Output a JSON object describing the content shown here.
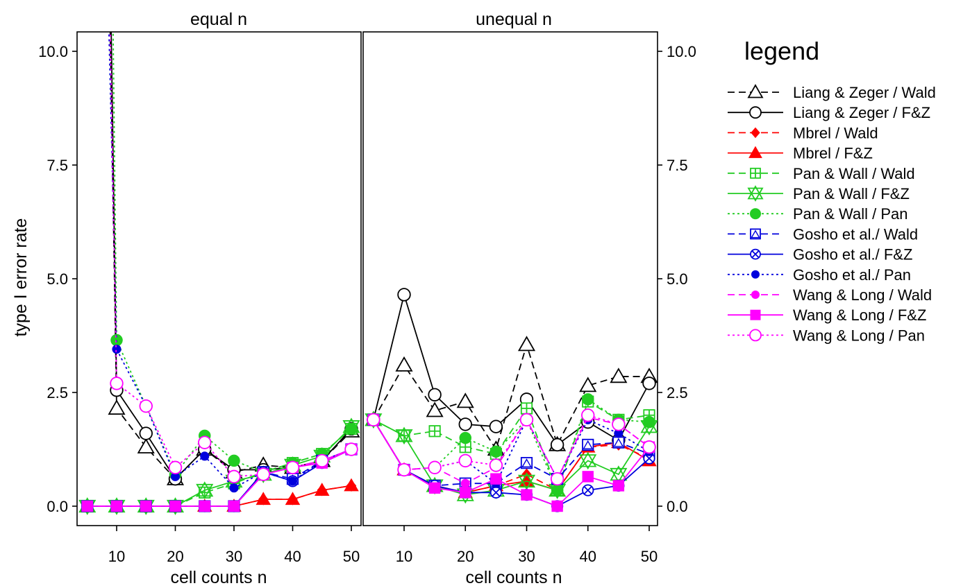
{
  "chart_data": {
    "type": "line",
    "ylabel": "type I error rate",
    "ylim": [
      -0.4,
      10.4
    ],
    "yticks": [
      "0.0",
      "2.5",
      "5.0",
      "7.5",
      "10.0"
    ],
    "yticks_values": [
      0,
      2.5,
      5,
      7.5,
      10
    ],
    "legend": {
      "title": "legend",
      "placement": "right"
    },
    "panels": [
      {
        "title": "equal n",
        "xlabel": "cell counts n",
        "xlim": [
          3,
          52
        ],
        "xticks": [
          "10",
          "20",
          "30",
          "40",
          "50"
        ],
        "xticks_values": [
          10,
          20,
          30,
          40,
          50
        ],
        "y_axis_side": "left"
      },
      {
        "title": "unequal n",
        "xlabel": "cell counts n",
        "xlim": [
          3,
          52
        ],
        "xticks": [
          "10",
          "20",
          "30",
          "40",
          "50"
        ],
        "xticks_values": [
          10,
          20,
          30,
          40,
          50
        ],
        "y_axis_side": "right"
      }
    ],
    "x": [
      5,
      10,
      15,
      20,
      25,
      30,
      35,
      40,
      45,
      50
    ],
    "series": [
      {
        "name": "Liang & Zeger / Wald",
        "color": "#000000",
        "dash": "dashed",
        "marker": "triangle-open",
        "equal": [
          40,
          2.15,
          1.3,
          0.6,
          1.25,
          0.75,
          0.9,
          0.85,
          1.0,
          1.65
        ],
        "unequal": [
          1.9,
          3.1,
          2.1,
          2.3,
          1.25,
          3.55,
          1.35,
          2.65,
          2.85,
          2.85
        ]
      },
      {
        "name": "Liang & Zeger / F&Z",
        "color": "#000000",
        "dash": "solid",
        "marker": "circle-open",
        "equal": [
          45,
          2.55,
          1.6,
          0.6,
          1.25,
          0.8,
          0.8,
          0.85,
          1.0,
          1.7
        ],
        "unequal": [
          1.9,
          4.65,
          2.45,
          1.8,
          1.75,
          2.35,
          1.35,
          1.85,
          1.45,
          2.7
        ]
      },
      {
        "name": "Mbrel / Wald",
        "color": "#ff0000",
        "dash": "dashed",
        "marker": "diamond-filled",
        "equal": [
          0,
          0,
          0,
          0,
          0,
          0,
          0.15,
          0.15,
          0.35,
          0.45
        ],
        "unequal": [
          1.9,
          0.8,
          0.45,
          0.3,
          0.45,
          0.7,
          0.35,
          1.3,
          1.35,
          1.05
        ]
      },
      {
        "name": "Mbrel / F&Z",
        "color": "#ff0000",
        "dash": "solid",
        "marker": "triangle-filled",
        "equal": [
          0,
          0,
          0,
          0,
          0,
          0,
          0.15,
          0.15,
          0.35,
          0.45
        ],
        "unequal": [
          1.9,
          0.8,
          0.45,
          0.3,
          0.45,
          0.55,
          0.35,
          1.3,
          1.4,
          1.0
        ]
      },
      {
        "name": "Pan & Wall / Wald",
        "color": "#22cc22",
        "dash": "dashed",
        "marker": "square-plus",
        "equal": [
          0,
          0,
          0,
          0,
          0.3,
          0.5,
          0.75,
          0.95,
          1.15,
          1.7
        ],
        "unequal": [
          1.9,
          1.55,
          1.65,
          1.3,
          1.15,
          2.15,
          0.35,
          2.3,
          1.9,
          2.0
        ]
      },
      {
        "name": "Pan & Wall / F&Z",
        "color": "#22cc22",
        "dash": "solid",
        "marker": "star-open",
        "equal": [
          0,
          0,
          0,
          0,
          0.35,
          0.55,
          0.7,
          0.9,
          1.1,
          1.75
        ],
        "unequal": [
          1.9,
          1.55,
          0.45,
          0.25,
          0.35,
          0.55,
          0.35,
          1.0,
          0.7,
          1.75
        ]
      },
      {
        "name": "Pan & Wall / Pan",
        "color": "#22cc22",
        "dash": "dotted",
        "marker": "circle-filled",
        "equal": [
          60,
          3.65,
          2.2,
          0.7,
          1.55,
          1.0,
          0.75,
          0.95,
          1.15,
          1.7
        ],
        "unequal": [
          1.9,
          0.8,
          0.85,
          1.5,
          1.2,
          1.9,
          0.35,
          2.35,
          1.9,
          1.85
        ]
      },
      {
        "name": "Gosho et al./ Wald",
        "color": "#0000dd",
        "dash": "dashed",
        "marker": "square-triangle",
        "equal": [
          0,
          0,
          0,
          0,
          0,
          0,
          0.75,
          0.6,
          1.0,
          1.25
        ],
        "unequal": [
          1.9,
          0.8,
          0.45,
          0.5,
          0.5,
          0.95,
          0.6,
          1.35,
          1.4,
          1.15
        ]
      },
      {
        "name": "Gosho et al./ F&Z",
        "color": "#0000dd",
        "dash": "solid",
        "marker": "circle-x",
        "equal": [
          0,
          0,
          0,
          0,
          0,
          0,
          0.75,
          0.55,
          0.95,
          1.25
        ],
        "unequal": [
          1.9,
          0.8,
          0.45,
          0.3,
          0.3,
          0.25,
          0.0,
          0.35,
          0.45,
          1.05
        ]
      },
      {
        "name": "Gosho et al./ Pan",
        "color": "#0000dd",
        "dash": "dotted",
        "marker": "dot-filled",
        "equal": [
          30,
          3.45,
          2.2,
          0.65,
          1.1,
          0.4,
          0.75,
          0.55,
          1.0,
          1.25
        ],
        "unequal": [
          1.9,
          0.8,
          0.85,
          1.0,
          0.5,
          1.9,
          0.6,
          1.9,
          1.6,
          1.2
        ]
      },
      {
        "name": "Wang & Long / Wald",
        "color": "#ff00ff",
        "dash": "dashed",
        "marker": "dot-filled",
        "equal": [
          0,
          0,
          0,
          0,
          0,
          0,
          0.7,
          0.85,
          1.0,
          1.25
        ],
        "unequal": [
          1.9,
          0.8,
          0.85,
          0.5,
          0.85,
          1.9,
          0.6,
          1.95,
          1.8,
          1.3
        ]
      },
      {
        "name": "Wang & Long / F&Z",
        "color": "#ff00ff",
        "dash": "solid",
        "marker": "square-filled",
        "equal": [
          0,
          0,
          0,
          0,
          0,
          0,
          0.7,
          0.85,
          0.95,
          1.25
        ],
        "unequal": [
          1.9,
          0.8,
          0.4,
          0.3,
          0.6,
          0.25,
          0.0,
          0.65,
          0.45,
          1.3
        ]
      },
      {
        "name": "Wang & Long / Pan",
        "color": "#ff00ff",
        "dash": "dotted",
        "marker": "circle-open",
        "equal": [
          38,
          2.7,
          2.2,
          0.85,
          1.4,
          0.65,
          0.7,
          0.85,
          1.0,
          1.25
        ],
        "unequal": [
          1.9,
          0.8,
          0.85,
          1.0,
          0.9,
          1.9,
          0.6,
          2.0,
          1.8,
          1.3
        ]
      }
    ]
  }
}
